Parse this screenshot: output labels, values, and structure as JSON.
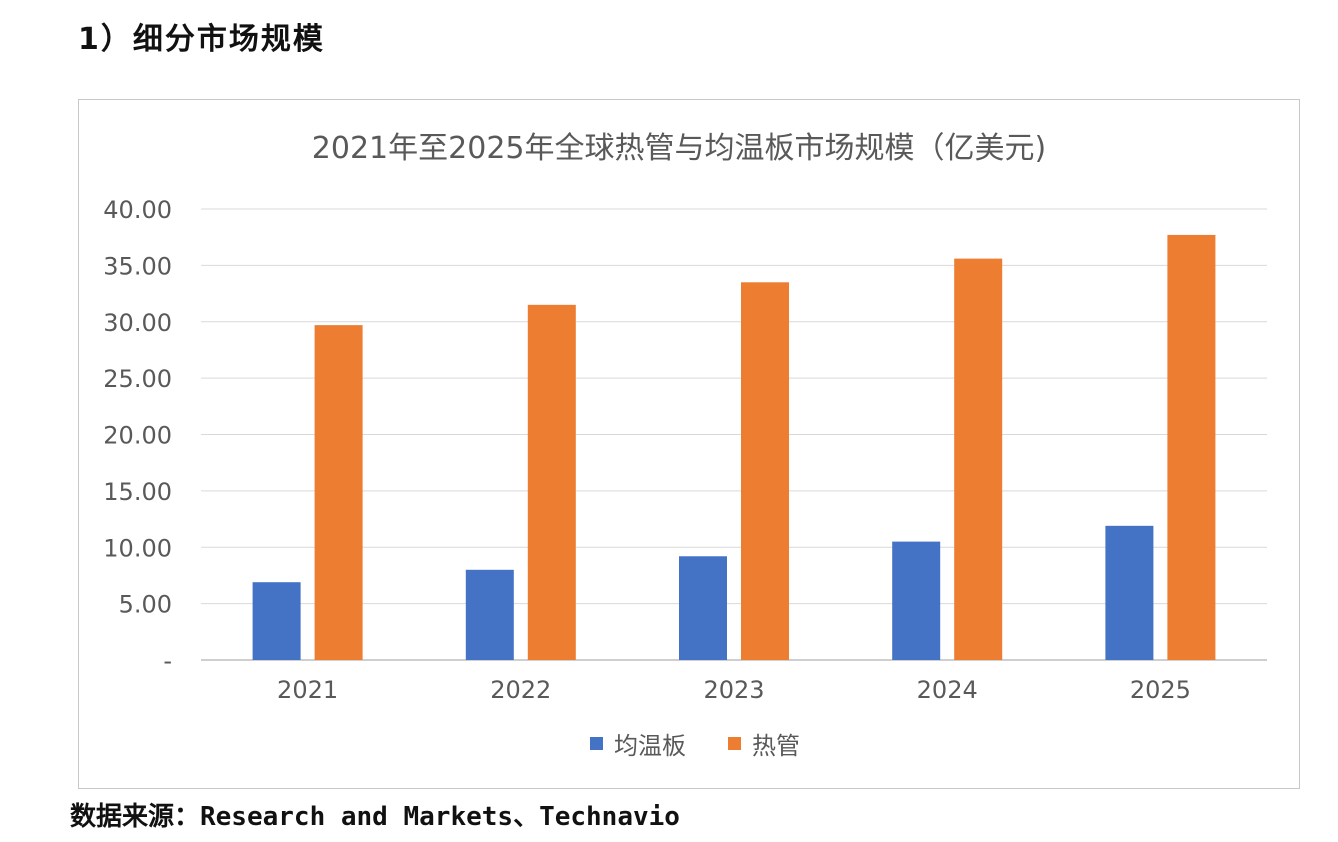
{
  "heading": "1）细分市场规模",
  "source": "数据来源：Research and Markets、Technavio",
  "colors": {
    "vc": "#4472c4",
    "hp": "#ed7d31",
    "grid": "#d9d9d9",
    "text": "#595959"
  },
  "chart_data": {
    "type": "bar",
    "title": "2021年至2025年全球热管与均温板市场规模（亿美元)",
    "categories": [
      "2021",
      "2022",
      "2023",
      "2024",
      "2025"
    ],
    "series": [
      {
        "name": "均温板",
        "values": [
          6.9,
          8.0,
          9.2,
          10.5,
          11.9
        ]
      },
      {
        "name": "热管",
        "values": [
          29.7,
          31.5,
          33.5,
          35.6,
          37.7
        ]
      }
    ],
    "ylim": [
      0,
      40
    ],
    "yticks": [
      "-",
      "5.00",
      "10.00",
      "15.00",
      "20.00",
      "25.00",
      "30.00",
      "35.00",
      "40.00"
    ],
    "grid": true,
    "legend": "bottom-center"
  }
}
